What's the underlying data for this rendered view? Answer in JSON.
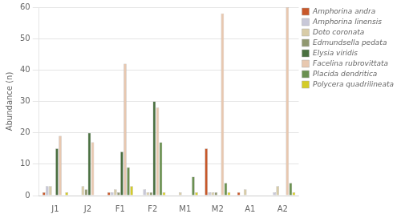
{
  "chart_data": {
    "type": "bar",
    "categories": [
      "J1",
      "J2",
      "F1",
      "F2",
      "M1",
      "M2",
      "A1",
      "A2"
    ],
    "series": [
      {
        "name": "Amphorina andra",
        "color": "#c8582a",
        "values": [
          1,
          0,
          1,
          0,
          0,
          15,
          1,
          0
        ]
      },
      {
        "name": "Amphorina linensis",
        "color": "#c8c8d8",
        "values": [
          3,
          0,
          1,
          2,
          0,
          1,
          0,
          1
        ]
      },
      {
        "name": "Doto coronata",
        "color": "#d8cca8",
        "values": [
          3,
          3,
          2,
          1,
          1,
          1,
          2,
          3
        ]
      },
      {
        "name": "Edmundsella pedata",
        "color": "#909870",
        "values": [
          0,
          2,
          1,
          1,
          0,
          1,
          0,
          0
        ]
      },
      {
        "name": "Elysia viridis",
        "color": "#4a7040",
        "values": [
          15,
          20,
          14,
          30,
          0,
          0,
          0,
          0
        ]
      },
      {
        "name": "Facelina rubrovittata",
        "color": "#e8c8b0",
        "values": [
          19,
          17,
          42,
          28,
          0,
          58,
          0,
          60
        ]
      },
      {
        "name": "Placida dendritica",
        "color": "#6a9050",
        "values": [
          0,
          0,
          9,
          17,
          6,
          4,
          0,
          4
        ]
      },
      {
        "name": "Polycera quadrilineata",
        "color": "#d4cc28",
        "values": [
          1,
          0,
          3,
          1,
          1,
          1,
          0,
          1
        ]
      }
    ],
    "ylabel": "Abundance (n)",
    "ylim": [
      0,
      60
    ],
    "yticks": [
      0,
      10,
      20,
      30,
      40,
      50,
      60
    ],
    "grid": true,
    "legend": "right"
  }
}
